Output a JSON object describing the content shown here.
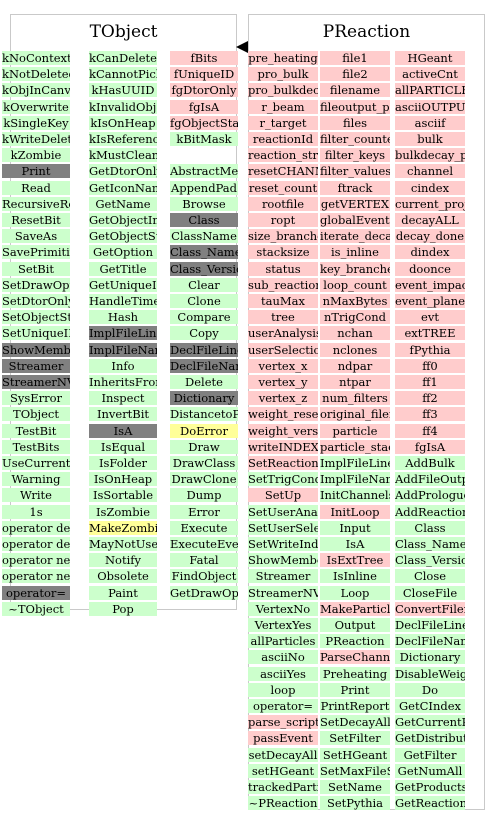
{
  "classes": [
    {
      "title": "TObject",
      "columns": [
        [
          {
            "t": "kNoContextMenu",
            "k": "green"
          },
          {
            "t": "kNotDeleted",
            "k": "green"
          },
          {
            "t": "kObjInCanvas",
            "k": "green"
          },
          {
            "t": "kOverwrite",
            "k": "green"
          },
          {
            "t": "kSingleKey",
            "k": "green"
          },
          {
            "t": "kWriteDelete",
            "k": "green"
          },
          {
            "t": "kZombie",
            "k": "green"
          },
          {
            "t": "Print",
            "k": "gray"
          },
          {
            "t": "Read",
            "k": "green"
          },
          {
            "t": "RecursiveRemove",
            "k": "green"
          },
          {
            "t": "ResetBit",
            "k": "green"
          },
          {
            "t": "SaveAs",
            "k": "green"
          },
          {
            "t": "SavePrimitive",
            "k": "green"
          },
          {
            "t": "SetBit",
            "k": "green"
          },
          {
            "t": "SetDrawOption",
            "k": "green"
          },
          {
            "t": "SetDtorOnly",
            "k": "green"
          },
          {
            "t": "SetObjectStat",
            "k": "green"
          },
          {
            "t": "SetUniqueID",
            "k": "green"
          },
          {
            "t": "ShowMembers",
            "k": "gray"
          },
          {
            "t": "Streamer",
            "k": "gray"
          },
          {
            "t": "StreamerNVirtual",
            "k": "gray"
          },
          {
            "t": "SysError",
            "k": "green"
          },
          {
            "t": "TObject",
            "k": "green"
          },
          {
            "t": "TestBit",
            "k": "green"
          },
          {
            "t": "TestBits",
            "k": "green"
          },
          {
            "t": "UseCurrentStyle",
            "k": "green"
          },
          {
            "t": "Warning",
            "k": "green"
          },
          {
            "t": "Write",
            "k": "green"
          },
          {
            "t": "1s",
            "k": "green"
          },
          {
            "t": "operator delete",
            "k": "green"
          },
          {
            "t": "operator delete[]",
            "k": "green"
          },
          {
            "t": "operator new",
            "k": "green"
          },
          {
            "t": "operator new[]",
            "k": "green"
          },
          {
            "t": "operator=",
            "k": "gray"
          },
          {
            "t": "~TObject",
            "k": "green"
          }
        ],
        [
          {
            "t": "kCanDelete",
            "k": "green"
          },
          {
            "t": "kCannotPick",
            "k": "green"
          },
          {
            "t": "kHasUUID",
            "k": "green"
          },
          {
            "t": "kInvalidObject",
            "k": "green"
          },
          {
            "t": "kIsOnHeap",
            "k": "green"
          },
          {
            "t": "kIsReferenced",
            "k": "green"
          },
          {
            "t": "kMustCleanup",
            "k": "green"
          },
          {
            "t": "GetDtorOnly",
            "k": "green"
          },
          {
            "t": "GetIconName",
            "k": "green"
          },
          {
            "t": "GetName",
            "k": "green"
          },
          {
            "t": "GetObjectInfo",
            "k": "green"
          },
          {
            "t": "GetObjectStat",
            "k": "green"
          },
          {
            "t": "GetOption",
            "k": "green"
          },
          {
            "t": "GetTitle",
            "k": "green"
          },
          {
            "t": "GetUniqueID",
            "k": "green"
          },
          {
            "t": "HandleTimer",
            "k": "green"
          },
          {
            "t": "Hash",
            "k": "green"
          },
          {
            "t": "ImplFileLine",
            "k": "gray"
          },
          {
            "t": "ImplFileName",
            "k": "gray"
          },
          {
            "t": "Info",
            "k": "green"
          },
          {
            "t": "InheritsFrom",
            "k": "green"
          },
          {
            "t": "Inspect",
            "k": "green"
          },
          {
            "t": "InvertBit",
            "k": "green"
          },
          {
            "t": "IsA",
            "k": "gray"
          },
          {
            "t": "IsEqual",
            "k": "green"
          },
          {
            "t": "IsFolder",
            "k": "green"
          },
          {
            "t": "IsOnHeap",
            "k": "green"
          },
          {
            "t": "IsSortable",
            "k": "green"
          },
          {
            "t": "IsZombie",
            "k": "green"
          },
          {
            "t": "MakeZombie",
            "k": "yellow"
          },
          {
            "t": "MayNotUse",
            "k": "green"
          },
          {
            "t": "Notify",
            "k": "green"
          },
          {
            "t": "Obsolete",
            "k": "green"
          },
          {
            "t": "Paint",
            "k": "green"
          },
          {
            "t": "Pop",
            "k": "green"
          }
        ],
        [
          {
            "t": "fBits",
            "k": "pink"
          },
          {
            "t": "fUniqueID",
            "k": "pink"
          },
          {
            "t": "fgDtorOnly",
            "k": "pink"
          },
          {
            "t": "fgIsA",
            "k": "pink"
          },
          {
            "t": "fgObjectStat",
            "k": "pink"
          },
          {
            "t": "kBitMask",
            "k": "green"
          },
          {
            "t": "",
            "k": "white"
          },
          {
            "t": "AbstractMethod",
            "k": "green"
          },
          {
            "t": "AppendPad",
            "k": "green"
          },
          {
            "t": "Browse",
            "k": "green"
          },
          {
            "t": "Class",
            "k": "gray"
          },
          {
            "t": "ClassName",
            "k": "green"
          },
          {
            "t": "Class_Name",
            "k": "gray"
          },
          {
            "t": "Class_Version",
            "k": "gray"
          },
          {
            "t": "Clear",
            "k": "green"
          },
          {
            "t": "Clone",
            "k": "green"
          },
          {
            "t": "Compare",
            "k": "green"
          },
          {
            "t": "Copy",
            "k": "green"
          },
          {
            "t": "DeclFileLine",
            "k": "gray"
          },
          {
            "t": "DeclFileName",
            "k": "gray"
          },
          {
            "t": "Delete",
            "k": "green"
          },
          {
            "t": "Dictionary",
            "k": "gray"
          },
          {
            "t": "DistancetoPrimitive",
            "k": "green"
          },
          {
            "t": "DoError",
            "k": "yellow"
          },
          {
            "t": "Draw",
            "k": "green"
          },
          {
            "t": "DrawClass",
            "k": "green"
          },
          {
            "t": "DrawClone",
            "k": "green"
          },
          {
            "t": "Dump",
            "k": "green"
          },
          {
            "t": "Error",
            "k": "green"
          },
          {
            "t": "Execute",
            "k": "green"
          },
          {
            "t": "ExecuteEvent",
            "k": "green"
          },
          {
            "t": "Fatal",
            "k": "green"
          },
          {
            "t": "FindObject",
            "k": "green"
          },
          {
            "t": "GetDrawOption",
            "k": "green"
          }
        ]
      ]
    },
    {
      "title": "PReaction",
      "columns": [
        [
          {
            "t": "pre_heating",
            "k": "pink"
          },
          {
            "t": "pro_bulk",
            "k": "pink"
          },
          {
            "t": "pro_bulkdecay_pos",
            "k": "pink"
          },
          {
            "t": "r_beam",
            "k": "pink"
          },
          {
            "t": "r_target",
            "k": "pink"
          },
          {
            "t": "reactionId",
            "k": "pink"
          },
          {
            "t": "reaction_string",
            "k": "pink"
          },
          {
            "t": "resetCHANNELS",
            "k": "pink"
          },
          {
            "t": "reset_count",
            "k": "pink"
          },
          {
            "t": "rootfile",
            "k": "pink"
          },
          {
            "t": "ropt",
            "k": "pink"
          },
          {
            "t": "size_branches",
            "k": "pink"
          },
          {
            "t": "stacksize",
            "k": "pink"
          },
          {
            "t": "status",
            "k": "pink"
          },
          {
            "t": "sub_reaction",
            "k": "pink"
          },
          {
            "t": "tauMax",
            "k": "pink"
          },
          {
            "t": "tree",
            "k": "pink"
          },
          {
            "t": "userAnalysis",
            "k": "pink"
          },
          {
            "t": "userSelection",
            "k": "pink"
          },
          {
            "t": "vertex_x",
            "k": "pink"
          },
          {
            "t": "vertex_y",
            "k": "pink"
          },
          {
            "t": "vertex_z",
            "k": "pink"
          },
          {
            "t": "weight_reset",
            "k": "pink"
          },
          {
            "t": "weight_version",
            "k": "pink"
          },
          {
            "t": "writeINDEX",
            "k": "pink"
          },
          {
            "t": "SetReactionId",
            "k": "pink"
          },
          {
            "t": "SetTrigCond",
            "k": "green"
          },
          {
            "t": "SetUp",
            "k": "pink"
          },
          {
            "t": "SetUserAnalysis",
            "k": "green"
          },
          {
            "t": "SetUserSelection",
            "k": "green"
          },
          {
            "t": "SetWriteIndex",
            "k": "green"
          },
          {
            "t": "ShowMembers",
            "k": "green"
          },
          {
            "t": "Streamer",
            "k": "green"
          },
          {
            "t": "StreamerNVirtual",
            "k": "green"
          },
          {
            "t": "VertexNo",
            "k": "green"
          },
          {
            "t": "VertexYes",
            "k": "green"
          },
          {
            "t": "allParticles",
            "k": "green"
          },
          {
            "t": "asciiNo",
            "k": "green"
          },
          {
            "t": "asciiYes",
            "k": "green"
          },
          {
            "t": "loop",
            "k": "green"
          },
          {
            "t": "operator=",
            "k": "green"
          },
          {
            "t": "parse_script",
            "k": "pink"
          },
          {
            "t": "passEvent",
            "k": "pink"
          },
          {
            "t": "setDecayAll",
            "k": "green"
          },
          {
            "t": "setHGeant",
            "k": "green"
          },
          {
            "t": "trackedParticles",
            "k": "green"
          },
          {
            "t": "~PReaction",
            "k": "green"
          }
        ],
        [
          {
            "t": "file1",
            "k": "pink"
          },
          {
            "t": "file2",
            "k": "pink"
          },
          {
            "t": "filename",
            "k": "pink"
          },
          {
            "t": "fileoutput_pos",
            "k": "pink"
          },
          {
            "t": "files",
            "k": "pink"
          },
          {
            "t": "filter_counter",
            "k": "pink"
          },
          {
            "t": "filter_keys",
            "k": "pink"
          },
          {
            "t": "filter_values",
            "k": "pink"
          },
          {
            "t": "ftrack",
            "k": "pink"
          },
          {
            "t": "getVERTEX",
            "k": "pink"
          },
          {
            "t": "globalEventCounter",
            "k": "pink"
          },
          {
            "t": "iterate_decayed_particles",
            "k": "pink"
          },
          {
            "t": "is_inline",
            "k": "pink"
          },
          {
            "t": "key_branches",
            "k": "pink"
          },
          {
            "t": "loop_count",
            "k": "pink"
          },
          {
            "t": "nMaxBytes",
            "k": "pink"
          },
          {
            "t": "nTrigCond",
            "k": "pink"
          },
          {
            "t": "nchan",
            "k": "pink"
          },
          {
            "t": "nclones",
            "k": "pink"
          },
          {
            "t": "ndpar",
            "k": "pink"
          },
          {
            "t": "ntpar",
            "k": "pink"
          },
          {
            "t": "num_filters",
            "k": "pink"
          },
          {
            "t": "original_filename",
            "k": "pink"
          },
          {
            "t": "particle",
            "k": "pink"
          },
          {
            "t": "particle_stack",
            "k": "pink"
          },
          {
            "t": "ImplFileLine",
            "k": "green"
          },
          {
            "t": "ImplFileName",
            "k": "green"
          },
          {
            "t": "InitChannels",
            "k": "green"
          },
          {
            "t": "InitLoop",
            "k": "pink"
          },
          {
            "t": "Input",
            "k": "green"
          },
          {
            "t": "IsA",
            "k": "green"
          },
          {
            "t": "IsExtTree",
            "k": "pink"
          },
          {
            "t": "IsInline",
            "k": "green"
          },
          {
            "t": "Loop",
            "k": "green"
          },
          {
            "t": "MakeParticles",
            "k": "pink"
          },
          {
            "t": "Output",
            "k": "green"
          },
          {
            "t": "PReaction",
            "k": "green"
          },
          {
            "t": "ParseChannel",
            "k": "pink"
          },
          {
            "t": "Preheating",
            "k": "green"
          },
          {
            "t": "Print",
            "k": "green"
          },
          {
            "t": "PrintReport",
            "k": "green"
          },
          {
            "t": "SetDecayAll",
            "k": "green"
          },
          {
            "t": "SetFilter",
            "k": "green"
          },
          {
            "t": "SetHGeant",
            "k": "green"
          },
          {
            "t": "SetMaxFileSize",
            "k": "green"
          },
          {
            "t": "SetName",
            "k": "green"
          },
          {
            "t": "SetPythia",
            "k": "green"
          }
        ],
        [
          {
            "t": "HGeant",
            "k": "pink"
          },
          {
            "t": "activeCnt",
            "k": "pink"
          },
          {
            "t": "allPARTICLES",
            "k": "pink"
          },
          {
            "t": "asciiOUTPUT",
            "k": "pink"
          },
          {
            "t": "asciif",
            "k": "pink"
          },
          {
            "t": "bulk",
            "k": "pink"
          },
          {
            "t": "bulkdecay_pos",
            "k": "pink"
          },
          {
            "t": "channel",
            "k": "pink"
          },
          {
            "t": "cindex",
            "k": "pink"
          },
          {
            "t": "current_projector",
            "k": "pink"
          },
          {
            "t": "decayALL",
            "k": "pink"
          },
          {
            "t": "decay_done",
            "k": "pink"
          },
          {
            "t": "dindex",
            "k": "pink"
          },
          {
            "t": "doonce",
            "k": "pink"
          },
          {
            "t": "event_impact_param",
            "k": "pink"
          },
          {
            "t": "event_plane",
            "k": "pink"
          },
          {
            "t": "evt",
            "k": "pink"
          },
          {
            "t": "extTREE",
            "k": "pink"
          },
          {
            "t": "fPythia",
            "k": "pink"
          },
          {
            "t": "ff0",
            "k": "pink"
          },
          {
            "t": "ff1",
            "k": "pink"
          },
          {
            "t": "ff2",
            "k": "pink"
          },
          {
            "t": "ff3",
            "k": "pink"
          },
          {
            "t": "ff4",
            "k": "pink"
          },
          {
            "t": "fgIsA",
            "k": "pink"
          },
          {
            "t": "AddBulk",
            "k": "green"
          },
          {
            "t": "AddFileOutput",
            "k": "green"
          },
          {
            "t": "AddPrologueBulk",
            "k": "green"
          },
          {
            "t": "AddReaction",
            "k": "green"
          },
          {
            "t": "Class",
            "k": "green"
          },
          {
            "t": "Class_Name",
            "k": "green"
          },
          {
            "t": "Class_Version",
            "k": "green"
          },
          {
            "t": "Close",
            "k": "green"
          },
          {
            "t": "CloseFile",
            "k": "green"
          },
          {
            "t": "ConvertFilename",
            "k": "pink"
          },
          {
            "t": "DeclFileLine",
            "k": "green"
          },
          {
            "t": "DeclFileName",
            "k": "green"
          },
          {
            "t": "Dictionary",
            "k": "green"
          },
          {
            "t": "DisableWeightReset",
            "k": "green"
          },
          {
            "t": "Do",
            "k": "green"
          },
          {
            "t": "GetCIndex",
            "k": "green"
          },
          {
            "t": "GetCurrentProjector",
            "k": "green"
          },
          {
            "t": "GetDistributionManager",
            "k": "green"
          },
          {
            "t": "GetFilter",
            "k": "green"
          },
          {
            "t": "GetNumAll",
            "k": "green"
          },
          {
            "t": "GetProducts",
            "k": "green"
          },
          {
            "t": "GetReactionId",
            "k": "green"
          }
        ]
      ]
    }
  ]
}
